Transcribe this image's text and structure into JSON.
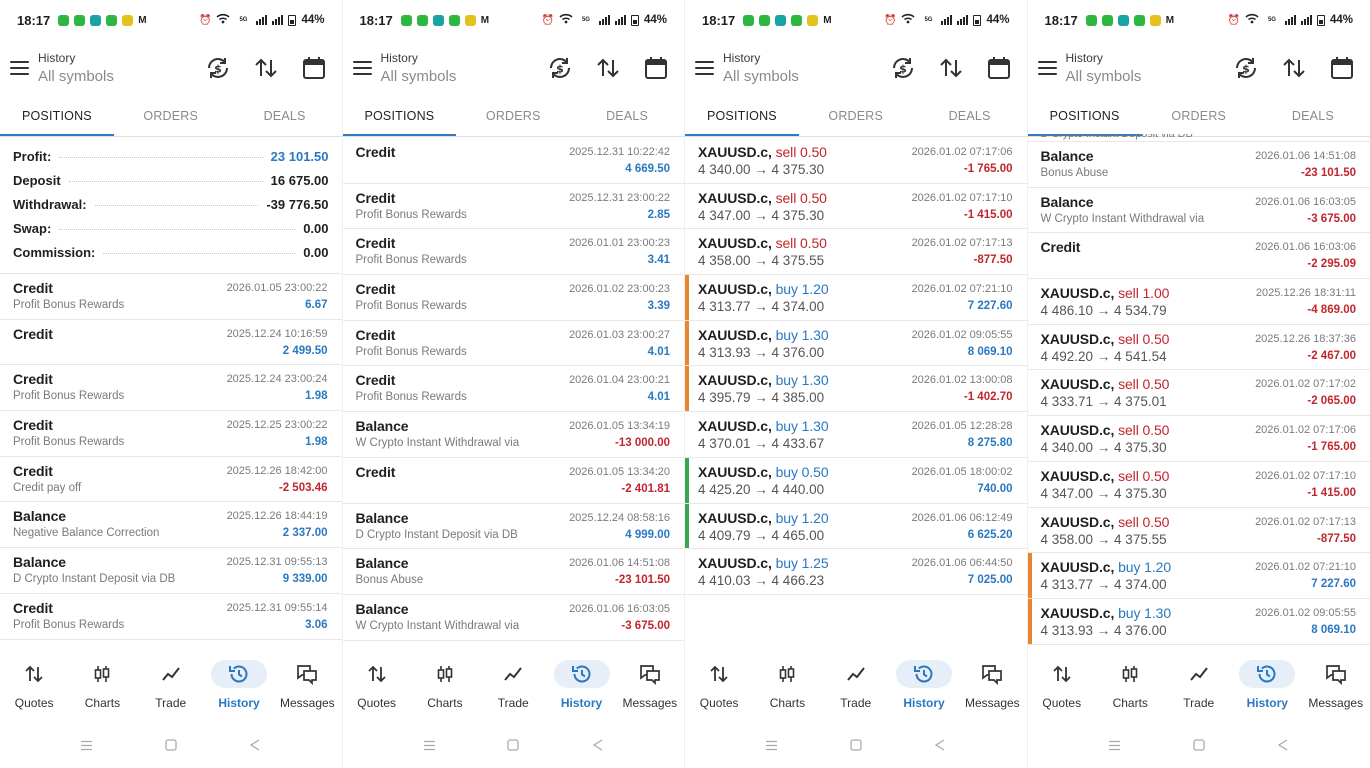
{
  "status_bar": {
    "time": "18:17",
    "battery": "44%",
    "network_label": "5G",
    "app_colors": [
      "#2db742",
      "#2db742",
      "#1aa3a3",
      "#2db742",
      "#e4c21b"
    ]
  },
  "header": {
    "title_small": "History",
    "title_big": "All symbols"
  },
  "tabs": [
    "POSITIONS",
    "ORDERS",
    "DEALS"
  ],
  "nav": [
    "Quotes",
    "Charts",
    "Trade",
    "History",
    "Messages"
  ],
  "icons": {
    "header": [
      "refresh-dollar-icon",
      "sort-icon",
      "calendar-icon"
    ],
    "nav": [
      "quotes-arrows-icon",
      "candles-icon",
      "trade-line-icon",
      "history-clock-icon",
      "messages-icon"
    ]
  },
  "colors": {
    "accent": "#2a78c2",
    "negative": "#c0262d",
    "orange_bar": "#e9842f",
    "green_bar": "#3aa556"
  },
  "screens": [
    {
      "active_tab": 0,
      "summary": [
        {
          "label": "Profit:",
          "value": "23 101.50",
          "blue": true
        },
        {
          "label": "Deposit",
          "value": "16 675.00",
          "blue": false
        },
        {
          "label": "Withdrawal:",
          "value": "-39 776.50",
          "blue": false
        },
        {
          "label": "Swap:",
          "value": "0.00",
          "blue": false
        },
        {
          "label": "Commission:",
          "value": "0.00",
          "blue": false
        }
      ],
      "rows": [
        {
          "kind": "op",
          "title": "Credit",
          "sub": "Profit Bonus Rewards",
          "date": "2026.01.05 23:00:22",
          "amount": "6.67",
          "neg": false
        },
        {
          "kind": "op",
          "title": "Credit",
          "sub": "",
          "date": "2025.12.24 10:16:59",
          "amount": "2 499.50",
          "neg": false
        },
        {
          "kind": "op",
          "title": "Credit",
          "sub": "Profit Bonus Rewards",
          "date": "2025.12.24 23:00:24",
          "amount": "1.98",
          "neg": false
        },
        {
          "kind": "op",
          "title": "Credit",
          "sub": "Profit Bonus Rewards",
          "date": "2025.12.25 23:00:22",
          "amount": "1.98",
          "neg": false
        },
        {
          "kind": "op",
          "title": "Credit",
          "sub": "Credit pay off",
          "date": "2025.12.26 18:42:00",
          "amount": "-2 503.46",
          "neg": true
        },
        {
          "kind": "op",
          "title": "Balance",
          "sub": "Negative Balance Correction",
          "date": "2025.12.26 18:44:19",
          "amount": "2 337.00",
          "neg": false
        },
        {
          "kind": "op",
          "title": "Balance",
          "sub": "D Crypto Instant Deposit via DB",
          "date": "2025.12.31 09:55:13",
          "amount": "9 339.00",
          "neg": false
        },
        {
          "kind": "op",
          "title": "Credit",
          "sub": "Profit Bonus Rewards",
          "date": "2025.12.31 09:55:14",
          "amount": "3.06",
          "neg": false
        }
      ]
    },
    {
      "active_tab": 0,
      "summary": [],
      "rows": [
        {
          "kind": "op",
          "title": "Credit",
          "sub": "",
          "date": "2025.12.31 10:22:42",
          "amount": "4 669.50",
          "neg": false
        },
        {
          "kind": "op",
          "title": "Credit",
          "sub": "Profit Bonus Rewards",
          "date": "2025.12.31 23:00:22",
          "amount": "2.85",
          "neg": false
        },
        {
          "kind": "op",
          "title": "Credit",
          "sub": "Profit Bonus Rewards",
          "date": "2026.01.01 23:00:23",
          "amount": "3.41",
          "neg": false
        },
        {
          "kind": "op",
          "title": "Credit",
          "sub": "Profit Bonus Rewards",
          "date": "2026.01.02 23:00:23",
          "amount": "3.39",
          "neg": false
        },
        {
          "kind": "op",
          "title": "Credit",
          "sub": "Profit Bonus Rewards",
          "date": "2026.01.03 23:00:27",
          "amount": "4.01",
          "neg": false
        },
        {
          "kind": "op",
          "title": "Credit",
          "sub": "Profit Bonus Rewards",
          "date": "2026.01.04 23:00:21",
          "amount": "4.01",
          "neg": false
        },
        {
          "kind": "op",
          "title": "Balance",
          "sub": "W Crypto Instant Withdrawal via",
          "date": "2026.01.05 13:34:19",
          "amount": "-13 000.00",
          "neg": true
        },
        {
          "kind": "op",
          "title": "Credit",
          "sub": "",
          "date": "2026.01.05 13:34:20",
          "amount": "-2 401.81",
          "neg": true
        },
        {
          "kind": "op",
          "title": "Balance",
          "sub": "D Crypto Instant Deposit via DB",
          "date": "2025.12.24 08:58:16",
          "amount": "4 999.00",
          "neg": false
        },
        {
          "kind": "op",
          "title": "Balance",
          "sub": "Bonus Abuse",
          "date": "2026.01.06 14:51:08",
          "amount": "-23 101.50",
          "neg": true
        },
        {
          "kind": "op",
          "title": "Balance",
          "sub": "W Crypto Instant Withdrawal via",
          "date": "2026.01.06 16:03:05",
          "amount": "-3 675.00",
          "neg": true
        }
      ]
    },
    {
      "active_tab": 0,
      "summary": [],
      "rows": [
        {
          "kind": "trade",
          "symbol": "XAUUSD.c,",
          "side": "sell",
          "lot": "0.50",
          "prices": "4 340.00 → 4 375.30",
          "date": "2026.01.02 07:17:06",
          "amount": "-1 765.00",
          "neg": true,
          "bar": ""
        },
        {
          "kind": "trade",
          "symbol": "XAUUSD.c,",
          "side": "sell",
          "lot": "0.50",
          "prices": "4 347.00 → 4 375.30",
          "date": "2026.01.02 07:17:10",
          "amount": "-1 415.00",
          "neg": true,
          "bar": ""
        },
        {
          "kind": "trade",
          "symbol": "XAUUSD.c,",
          "side": "sell",
          "lot": "0.50",
          "prices": "4 358.00 → 4 375.55",
          "date": "2026.01.02 07:17:13",
          "amount": "-877.50",
          "neg": true,
          "bar": ""
        },
        {
          "kind": "trade",
          "symbol": "XAUUSD.c,",
          "side": "buy",
          "lot": "1.20",
          "prices": "4 313.77 → 4 374.00",
          "date": "2026.01.02 07:21:10",
          "amount": "7 227.60",
          "neg": false,
          "bar": "orange"
        },
        {
          "kind": "trade",
          "symbol": "XAUUSD.c,",
          "side": "buy",
          "lot": "1.30",
          "prices": "4 313.93 → 4 376.00",
          "date": "2026.01.02 09:05:55",
          "amount": "8 069.10",
          "neg": false,
          "bar": "orange"
        },
        {
          "kind": "trade",
          "symbol": "XAUUSD.c,",
          "side": "buy",
          "lot": "1.30",
          "prices": "4 395.79 → 4 385.00",
          "date": "2026.01.02 13:00:08",
          "amount": "-1 402.70",
          "neg": true,
          "bar": "orange"
        },
        {
          "kind": "trade",
          "symbol": "XAUUSD.c,",
          "side": "buy",
          "lot": "1.30",
          "prices": "4 370.01 → 4 433.67",
          "date": "2026.01.05 12:28:28",
          "amount": "8 275.80",
          "neg": false,
          "bar": ""
        },
        {
          "kind": "trade",
          "symbol": "XAUUSD.c,",
          "side": "buy",
          "lot": "0.50",
          "prices": "4 425.20 → 4 440.00",
          "date": "2026.01.05 18:00:02",
          "amount": "740.00",
          "neg": false,
          "bar": "green"
        },
        {
          "kind": "trade",
          "symbol": "XAUUSD.c,",
          "side": "buy",
          "lot": "1.20",
          "prices": "4 409.79 → 4 465.00",
          "date": "2026.01.06 06:12:49",
          "amount": "6 625.20",
          "neg": false,
          "bar": "green"
        },
        {
          "kind": "trade",
          "symbol": "XAUUSD.c,",
          "side": "buy",
          "lot": "1.25",
          "prices": "4 410.03 → 4 466.23",
          "date": "2026.01.06 06:44:50",
          "amount": "7 025.00",
          "neg": false,
          "bar": ""
        }
      ]
    },
    {
      "active_tab": 0,
      "summary": [],
      "rows": [
        {
          "kind": "cut",
          "title": "D Crypto Instant Deposit via DB",
          "amount": ""
        },
        {
          "kind": "op",
          "title": "Balance",
          "sub": "Bonus Abuse",
          "date": "2026.01.06 14:51:08",
          "amount": "-23 101.50",
          "neg": true
        },
        {
          "kind": "op",
          "title": "Balance",
          "sub": "W Crypto Instant Withdrawal via",
          "date": "2026.01.06 16:03:05",
          "amount": "-3 675.00",
          "neg": true
        },
        {
          "kind": "op",
          "title": "Credit",
          "sub": "",
          "date": "2026.01.06 16:03:06",
          "amount": "-2 295.09",
          "neg": true
        },
        {
          "kind": "trade",
          "symbol": "XAUUSD.c,",
          "side": "sell",
          "lot": "1.00",
          "prices": "4 486.10 → 4 534.79",
          "date": "2025.12.26 18:31:11",
          "amount": "-4 869.00",
          "neg": true,
          "bar": ""
        },
        {
          "kind": "trade",
          "symbol": "XAUUSD.c,",
          "side": "sell",
          "lot": "0.50",
          "prices": "4 492.20 → 4 541.54",
          "date": "2025.12.26 18:37:36",
          "amount": "-2 467.00",
          "neg": true,
          "bar": ""
        },
        {
          "kind": "trade",
          "symbol": "XAUUSD.c,",
          "side": "sell",
          "lot": "0.50",
          "prices": "4 333.71 → 4 375.01",
          "date": "2026.01.02 07:17:02",
          "amount": "-2 065.00",
          "neg": true,
          "bar": ""
        },
        {
          "kind": "trade",
          "symbol": "XAUUSD.c,",
          "side": "sell",
          "lot": "0.50",
          "prices": "4 340.00 → 4 375.30",
          "date": "2026.01.02 07:17:06",
          "amount": "-1 765.00",
          "neg": true,
          "bar": ""
        },
        {
          "kind": "trade",
          "symbol": "XAUUSD.c,",
          "side": "sell",
          "lot": "0.50",
          "prices": "4 347.00 → 4 375.30",
          "date": "2026.01.02 07:17:10",
          "amount": "-1 415.00",
          "neg": true,
          "bar": ""
        },
        {
          "kind": "trade",
          "symbol": "XAUUSD.c,",
          "side": "sell",
          "lot": "0.50",
          "prices": "4 358.00 → 4 375.55",
          "date": "2026.01.02 07:17:13",
          "amount": "-877.50",
          "neg": true,
          "bar": ""
        },
        {
          "kind": "trade",
          "symbol": "XAUUSD.c,",
          "side": "buy",
          "lot": "1.20",
          "prices": "4 313.77 → 4 374.00",
          "date": "2026.01.02 07:21:10",
          "amount": "7 227.60",
          "neg": false,
          "bar": "orange"
        },
        {
          "kind": "trade",
          "symbol": "XAUUSD.c,",
          "side": "buy",
          "lot": "1.30",
          "prices": "4 313.93 → 4 376.00",
          "date": "2026.01.02 09:05:55",
          "amount": "8 069.10",
          "neg": false,
          "bar": "orange"
        }
      ]
    }
  ]
}
